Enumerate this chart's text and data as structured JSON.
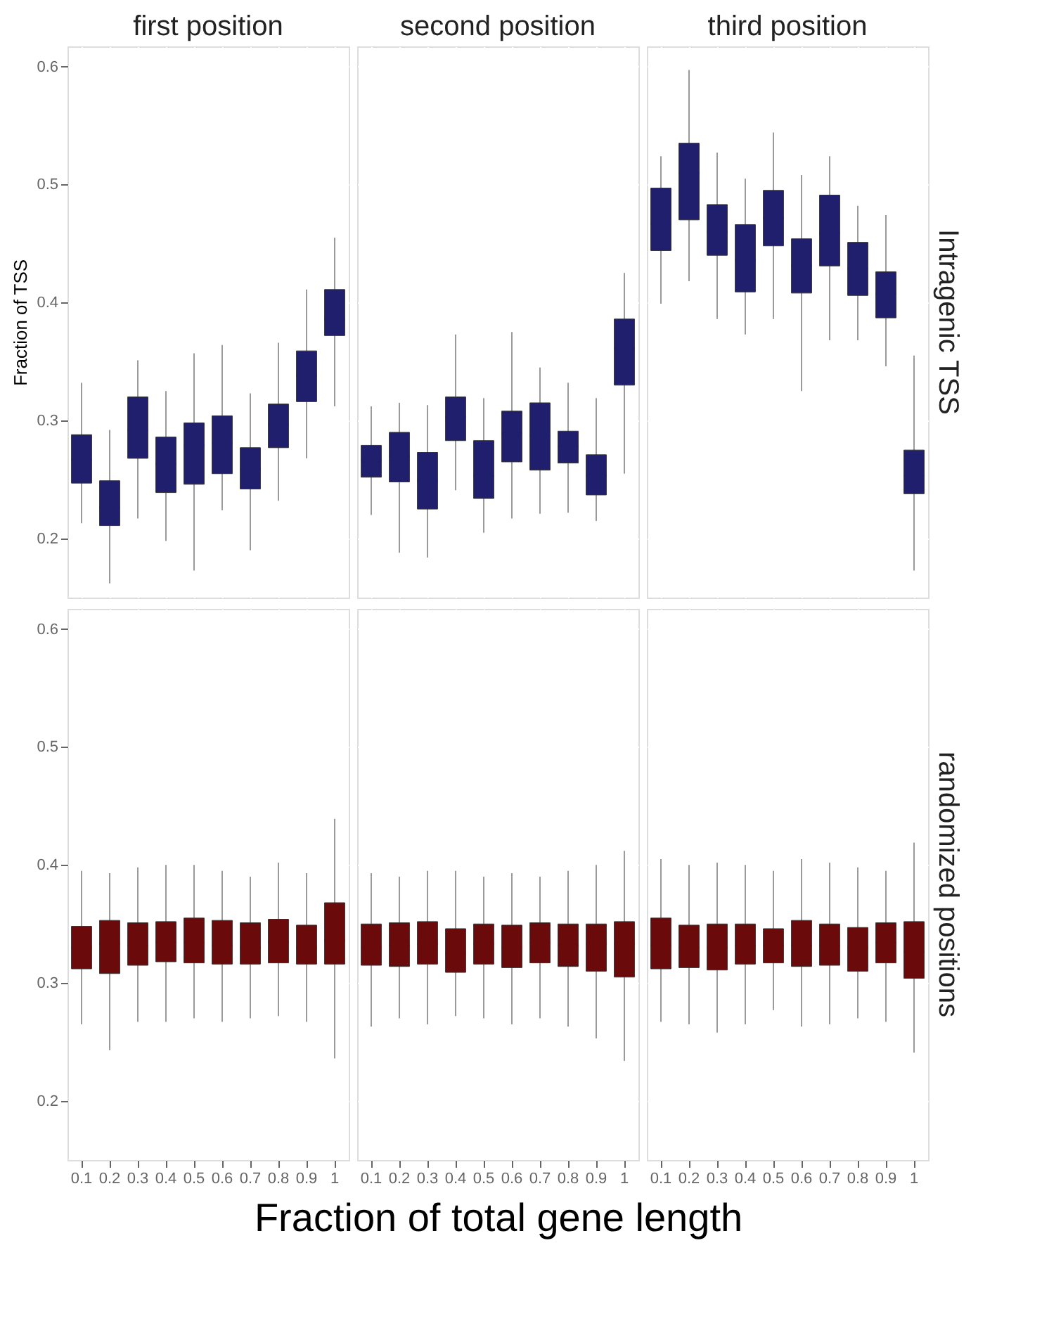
{
  "chart_data": [
    {
      "type": "box",
      "title": "first position",
      "ylabel": "Fraction of TSS",
      "categories": [
        "0.1",
        "0.2",
        "0.3",
        "0.4",
        "0.5",
        "0.6",
        "0.7",
        "0.8",
        "0.9",
        "1"
      ],
      "ylim": [
        0.15,
        0.617
      ],
      "yticks": [
        0.2,
        0.3,
        0.4,
        0.5,
        0.6
      ],
      "grid": true,
      "tick_labels": "y",
      "series": [
        {
          "color": "#1f1f6e",
          "boxes": [
            {
              "low": 0.213,
              "q1": 0.247,
              "median": 0.267,
              "q3": 0.288,
              "high": 0.332
            },
            {
              "low": 0.162,
              "q1": 0.211,
              "median": 0.226,
              "q3": 0.249,
              "high": 0.292
            },
            {
              "low": 0.217,
              "q1": 0.268,
              "median": 0.292,
              "q3": 0.32,
              "high": 0.351
            },
            {
              "low": 0.198,
              "q1": 0.239,
              "median": 0.263,
              "q3": 0.286,
              "high": 0.325
            },
            {
              "low": 0.173,
              "q1": 0.246,
              "median": 0.279,
              "q3": 0.298,
              "high": 0.357
            },
            {
              "low": 0.224,
              "q1": 0.255,
              "median": 0.281,
              "q3": 0.304,
              "high": 0.364
            },
            {
              "low": 0.19,
              "q1": 0.242,
              "median": 0.259,
              "q3": 0.277,
              "high": 0.323
            },
            {
              "low": 0.232,
              "q1": 0.277,
              "median": 0.296,
              "q3": 0.314,
              "high": 0.366
            },
            {
              "low": 0.268,
              "q1": 0.316,
              "median": 0.338,
              "q3": 0.359,
              "high": 0.411
            },
            {
              "low": 0.312,
              "q1": 0.372,
              "median": 0.386,
              "q3": 0.411,
              "high": 0.455
            }
          ]
        }
      ]
    },
    {
      "type": "box",
      "title": "second position",
      "categories": [
        "0.1",
        "0.2",
        "0.3",
        "0.4",
        "0.5",
        "0.6",
        "0.7",
        "0.8",
        "0.9",
        "1"
      ],
      "ylim": [
        0.15,
        0.617
      ],
      "yticks": [
        0.2,
        0.3,
        0.4,
        0.5,
        0.6
      ],
      "grid": true,
      "tick_labels": false,
      "series": [
        {
          "color": "#1f1f6e",
          "boxes": [
            {
              "low": 0.22,
              "q1": 0.252,
              "median": 0.266,
              "q3": 0.279,
              "high": 0.312
            },
            {
              "low": 0.188,
              "q1": 0.248,
              "median": 0.27,
              "q3": 0.29,
              "high": 0.315
            },
            {
              "low": 0.184,
              "q1": 0.225,
              "median": 0.249,
              "q3": 0.273,
              "high": 0.313
            },
            {
              "low": 0.241,
              "q1": 0.283,
              "median": 0.303,
              "q3": 0.32,
              "high": 0.373
            },
            {
              "low": 0.205,
              "q1": 0.234,
              "median": 0.253,
              "q3": 0.283,
              "high": 0.319
            },
            {
              "low": 0.217,
              "q1": 0.265,
              "median": 0.289,
              "q3": 0.308,
              "high": 0.375
            },
            {
              "low": 0.221,
              "q1": 0.258,
              "median": 0.287,
              "q3": 0.315,
              "high": 0.345
            },
            {
              "low": 0.222,
              "q1": 0.264,
              "median": 0.278,
              "q3": 0.291,
              "high": 0.332
            },
            {
              "low": 0.215,
              "q1": 0.237,
              "median": 0.253,
              "q3": 0.271,
              "high": 0.319
            },
            {
              "low": 0.255,
              "q1": 0.33,
              "median": 0.361,
              "q3": 0.386,
              "high": 0.425
            }
          ]
        }
      ]
    },
    {
      "type": "box",
      "title": "third position",
      "y2label": "Intragenic TSS",
      "categories": [
        "0.1",
        "0.2",
        "0.3",
        "0.4",
        "0.5",
        "0.6",
        "0.7",
        "0.8",
        "0.9",
        "1"
      ],
      "ylim": [
        0.15,
        0.617
      ],
      "yticks": [
        0.2,
        0.3,
        0.4,
        0.5,
        0.6
      ],
      "grid": true,
      "tick_labels": false,
      "series": [
        {
          "color": "#1f1f6e",
          "boxes": [
            {
              "low": 0.399,
              "q1": 0.444,
              "median": 0.467,
              "q3": 0.497,
              "high": 0.524
            },
            {
              "low": 0.418,
              "q1": 0.47,
              "median": 0.51,
              "q3": 0.535,
              "high": 0.597
            },
            {
              "low": 0.386,
              "q1": 0.44,
              "median": 0.46,
              "q3": 0.483,
              "high": 0.527
            },
            {
              "low": 0.373,
              "q1": 0.409,
              "median": 0.436,
              "q3": 0.466,
              "high": 0.505
            },
            {
              "low": 0.386,
              "q1": 0.448,
              "median": 0.472,
              "q3": 0.495,
              "high": 0.544
            },
            {
              "low": 0.325,
              "q1": 0.408,
              "median": 0.431,
              "q3": 0.454,
              "high": 0.508
            },
            {
              "low": 0.368,
              "q1": 0.431,
              "median": 0.459,
              "q3": 0.491,
              "high": 0.524
            },
            {
              "low": 0.368,
              "q1": 0.406,
              "median": 0.429,
              "q3": 0.451,
              "high": 0.482
            },
            {
              "low": 0.346,
              "q1": 0.387,
              "median": 0.407,
              "q3": 0.426,
              "high": 0.474
            },
            {
              "low": 0.173,
              "q1": 0.238,
              "median": 0.253,
              "q3": 0.275,
              "high": 0.355
            }
          ]
        }
      ]
    },
    {
      "type": "box",
      "categories": [
        "0.1",
        "0.2",
        "0.3",
        "0.4",
        "0.5",
        "0.6",
        "0.7",
        "0.8",
        "0.9",
        "1"
      ],
      "ylim": [
        0.15,
        0.617
      ],
      "yticks": [
        0.2,
        0.3,
        0.4,
        0.5,
        0.6
      ],
      "grid": true,
      "series": [
        {
          "color": "#6b0a0a",
          "boxes": [
            {
              "low": 0.265,
              "q1": 0.312,
              "median": 0.33,
              "q3": 0.348,
              "high": 0.395
            },
            {
              "low": 0.243,
              "q1": 0.308,
              "median": 0.333,
              "q3": 0.353,
              "high": 0.393
            },
            {
              "low": 0.267,
              "q1": 0.315,
              "median": 0.332,
              "q3": 0.351,
              "high": 0.398
            },
            {
              "low": 0.267,
              "q1": 0.318,
              "median": 0.334,
              "q3": 0.352,
              "high": 0.4
            },
            {
              "low": 0.27,
              "q1": 0.317,
              "median": 0.334,
              "q3": 0.355,
              "high": 0.4
            },
            {
              "low": 0.267,
              "q1": 0.316,
              "median": 0.332,
              "q3": 0.353,
              "high": 0.395
            },
            {
              "low": 0.27,
              "q1": 0.316,
              "median": 0.33,
              "q3": 0.351,
              "high": 0.39
            },
            {
              "low": 0.272,
              "q1": 0.317,
              "median": 0.335,
              "q3": 0.354,
              "high": 0.402
            },
            {
              "low": 0.267,
              "q1": 0.316,
              "median": 0.33,
              "q3": 0.349,
              "high": 0.393
            },
            {
              "low": 0.236,
              "q1": 0.316,
              "median": 0.336,
              "q3": 0.368,
              "high": 0.439
            }
          ]
        }
      ]
    },
    {
      "type": "box",
      "xlabel": "Fraction of total gene length",
      "categories": [
        "0.1",
        "0.2",
        "0.3",
        "0.4",
        "0.5",
        "0.6",
        "0.7",
        "0.8",
        "0.9",
        "1"
      ],
      "ylim": [
        0.15,
        0.617
      ],
      "yticks": [
        0.2,
        0.3,
        0.4,
        0.5,
        0.6
      ],
      "grid": true,
      "tick_labels": "x",
      "series": [
        {
          "color": "#6b0a0a",
          "boxes": [
            {
              "low": 0.263,
              "q1": 0.315,
              "median": 0.33,
              "q3": 0.35,
              "high": 0.393
            },
            {
              "low": 0.27,
              "q1": 0.314,
              "median": 0.332,
              "q3": 0.351,
              "high": 0.39
            },
            {
              "low": 0.265,
              "q1": 0.316,
              "median": 0.333,
              "q3": 0.352,
              "high": 0.395
            },
            {
              "low": 0.272,
              "q1": 0.309,
              "median": 0.325,
              "q3": 0.346,
              "high": 0.395
            },
            {
              "low": 0.27,
              "q1": 0.316,
              "median": 0.333,
              "q3": 0.35,
              "high": 0.39
            },
            {
              "low": 0.265,
              "q1": 0.313,
              "median": 0.33,
              "q3": 0.349,
              "high": 0.393
            },
            {
              "low": 0.27,
              "q1": 0.317,
              "median": 0.334,
              "q3": 0.351,
              "high": 0.39
            },
            {
              "low": 0.263,
              "q1": 0.314,
              "median": 0.332,
              "q3": 0.35,
              "high": 0.395
            },
            {
              "low": 0.253,
              "q1": 0.31,
              "median": 0.333,
              "q3": 0.35,
              "high": 0.4
            },
            {
              "low": 0.234,
              "q1": 0.305,
              "median": 0.333,
              "q3": 0.352,
              "high": 0.412
            }
          ]
        }
      ]
    },
    {
      "type": "box",
      "y2label": "randomized positions",
      "categories": [
        "0.1",
        "0.2",
        "0.3",
        "0.4",
        "0.5",
        "0.6",
        "0.7",
        "0.8",
        "0.9",
        "1"
      ],
      "ylim": [
        0.15,
        0.617
      ],
      "yticks": [
        0.2,
        0.3,
        0.4,
        0.5,
        0.6
      ],
      "grid": true,
      "tick_labels": "x",
      "series": [
        {
          "color": "#6b0a0a",
          "boxes": [
            {
              "low": 0.267,
              "q1": 0.312,
              "median": 0.332,
              "q3": 0.355,
              "high": 0.405
            },
            {
              "low": 0.265,
              "q1": 0.313,
              "median": 0.33,
              "q3": 0.349,
              "high": 0.4
            },
            {
              "low": 0.258,
              "q1": 0.311,
              "median": 0.33,
              "q3": 0.35,
              "high": 0.402
            },
            {
              "low": 0.265,
              "q1": 0.316,
              "median": 0.332,
              "q3": 0.35,
              "high": 0.4
            },
            {
              "low": 0.277,
              "q1": 0.317,
              "median": 0.332,
              "q3": 0.346,
              "high": 0.395
            },
            {
              "low": 0.263,
              "q1": 0.314,
              "median": 0.332,
              "q3": 0.353,
              "high": 0.405
            },
            {
              "low": 0.265,
              "q1": 0.315,
              "median": 0.332,
              "q3": 0.35,
              "high": 0.402
            },
            {
              "low": 0.27,
              "q1": 0.31,
              "median": 0.33,
              "q3": 0.347,
              "high": 0.398
            },
            {
              "low": 0.267,
              "q1": 0.317,
              "median": 0.334,
              "q3": 0.351,
              "high": 0.395
            },
            {
              "low": 0.241,
              "q1": 0.304,
              "median": 0.326,
              "q3": 0.352,
              "high": 0.419
            }
          ]
        }
      ]
    }
  ]
}
